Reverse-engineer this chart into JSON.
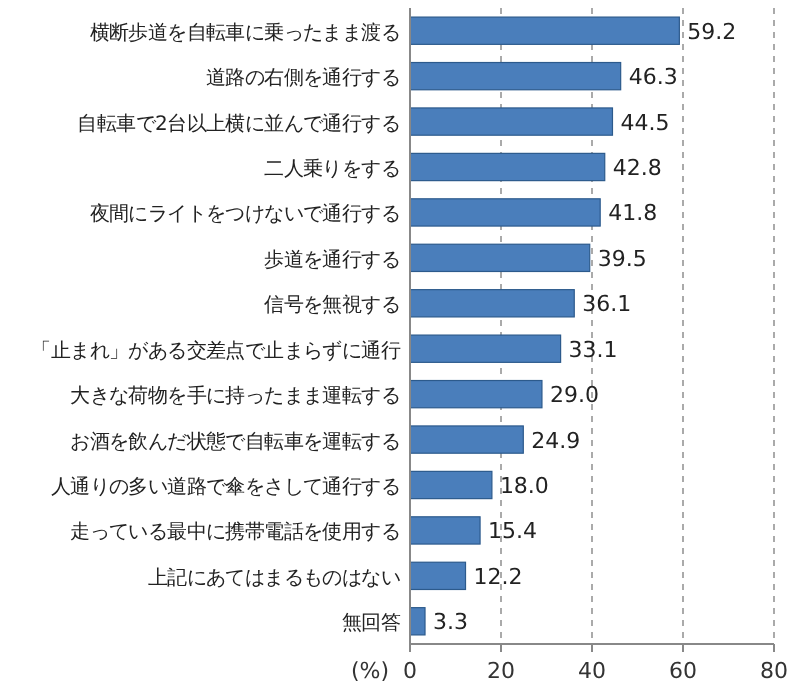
{
  "chart_data": {
    "type": "bar",
    "orientation": "horizontal",
    "xlabel": "(%)",
    "categories": [
      "横断歩道を自転車に乗ったまま渡る",
      "道路の右側を通行する",
      "自転車で2台以上横に並んで通行する",
      "二人乗りをする",
      "夜間にライトをつけないで通行する",
      "歩道を通行する",
      "信号を無視する",
      "「止まれ」がある交差点で止まらずに通行",
      "大きな荷物を手に持ったまま運転する",
      "お酒を飲んだ状態で自転車を運転する",
      "人通りの多い道路で傘をさして通行する",
      "走っている最中に携帯電話を使用する",
      "上記にあてはまるものはない",
      "無回答"
    ],
    "values": [
      59.2,
      46.3,
      44.5,
      42.8,
      41.8,
      39.5,
      36.1,
      33.1,
      29.0,
      24.9,
      18.0,
      15.4,
      12.2,
      3.3
    ],
    "value_labels": [
      "59.2",
      "46.3",
      "44.5",
      "42.8",
      "41.8",
      "39.5",
      "36.1",
      "33.1",
      "29.0",
      "24.9",
      "18.0",
      "15.4",
      "12.2",
      "3.3"
    ],
    "color": "#4a7ebb",
    "xlim": [
      0,
      80
    ],
    "xticks": [
      0,
      20,
      40,
      60,
      80
    ],
    "grid": "x"
  }
}
